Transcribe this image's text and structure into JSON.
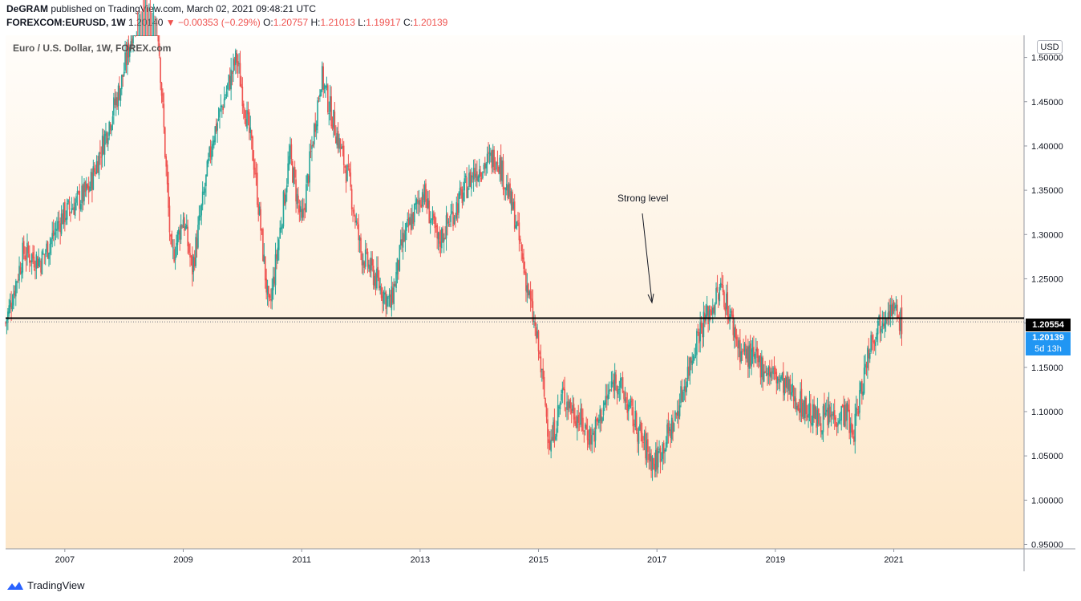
{
  "header": {
    "author": "DeGRAM",
    "published_text": "published on TradingView.com, March 02, 2021 09:48:21 UTC",
    "symbol": "FOREXCOM:EURUSD, 1W",
    "last_price": "1.20140",
    "change": "−0.00353 (−0.29%)",
    "open_label": "O:",
    "open": "1.20757",
    "high_label": "H:",
    "high": "1.21013",
    "low_label": "L:",
    "low": "1.19917",
    "close_label": "C:",
    "close": "1.20139"
  },
  "chart_title": "Euro / U.S. Dollar, 1W, FOREX.com",
  "currency_button": "USD",
  "annotation": "Strong level",
  "horizontal_level_label": "1.20554",
  "current_price_label": "1.20139",
  "countdown_label": "5d 13h",
  "footer": {
    "brand": "TradingView"
  },
  "colors": {
    "up": "#26a69a",
    "down": "#ef5350",
    "bg_top": "#fffdfa",
    "bg_bottom": "#fde7c9",
    "level_line": "#000000",
    "price_label": "#2196f3"
  },
  "chart_data": {
    "type": "candlestick",
    "interval": "1W",
    "ylim": [
      0.945,
      1.525
    ],
    "yticks": [
      "0.95000",
      "1.00000",
      "1.05000",
      "1.10000",
      "1.15000",
      "1.20000",
      "1.25000",
      "1.30000",
      "1.35000",
      "1.40000",
      "1.45000",
      "1.50000"
    ],
    "xticks": [
      "2007",
      "2009",
      "2011",
      "2013",
      "2015",
      "2017",
      "2019",
      "2021"
    ],
    "horizontal_level": 1.20554,
    "current_price": 1.20139,
    "price_path_anchors": [
      [
        2006.0,
        1.2
      ],
      [
        2006.3,
        1.28
      ],
      [
        2006.6,
        1.27
      ],
      [
        2006.95,
        1.32
      ],
      [
        2007.4,
        1.35
      ],
      [
        2007.95,
        1.47
      ],
      [
        2008.3,
        1.58
      ],
      [
        2008.55,
        1.56
      ],
      [
        2008.8,
        1.27
      ],
      [
        2009.0,
        1.32
      ],
      [
        2009.15,
        1.26
      ],
      [
        2009.5,
        1.41
      ],
      [
        2009.9,
        1.5
      ],
      [
        2010.2,
        1.38
      ],
      [
        2010.45,
        1.21
      ],
      [
        2010.8,
        1.39
      ],
      [
        2011.0,
        1.31
      ],
      [
        2011.33,
        1.48
      ],
      [
        2011.8,
        1.36
      ],
      [
        2012.0,
        1.28
      ],
      [
        2012.5,
        1.22
      ],
      [
        2012.7,
        1.29
      ],
      [
        2013.05,
        1.35
      ],
      [
        2013.3,
        1.29
      ],
      [
        2013.9,
        1.37
      ],
      [
        2014.3,
        1.39
      ],
      [
        2014.6,
        1.32
      ],
      [
        2015.0,
        1.17
      ],
      [
        2015.2,
        1.06
      ],
      [
        2015.4,
        1.12
      ],
      [
        2015.9,
        1.07
      ],
      [
        2016.3,
        1.14
      ],
      [
        2016.8,
        1.06
      ],
      [
        2016.95,
        1.04
      ],
      [
        2017.3,
        1.09
      ],
      [
        2017.7,
        1.19
      ],
      [
        2018.1,
        1.24
      ],
      [
        2018.4,
        1.17
      ],
      [
        2019.0,
        1.14
      ],
      [
        2019.7,
        1.09
      ],
      [
        2020.2,
        1.1
      ],
      [
        2020.3,
        1.07
      ],
      [
        2020.6,
        1.18
      ],
      [
        2020.9,
        1.22
      ],
      [
        2021.15,
        1.2
      ]
    ]
  }
}
